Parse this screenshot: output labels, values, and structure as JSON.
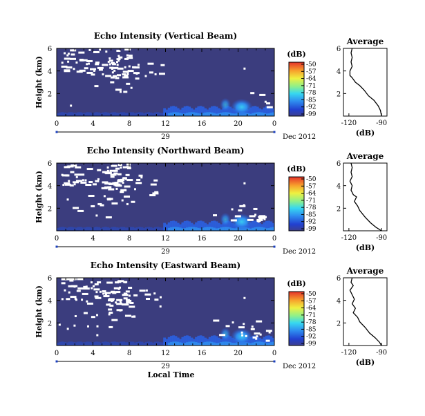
{
  "chart_data": [
    {
      "type": "heatmap",
      "title": "Echo Intensity (Vertical Beam)",
      "xlabel": "",
      "ylabel": "Height (km)",
      "xticks": [
        "0",
        "4",
        "8",
        "12",
        "16",
        "20",
        "0"
      ],
      "xlim": [
        0,
        24
      ],
      "yticks": [
        "2",
        "4",
        "6"
      ],
      "ylim": [
        0,
        6
      ],
      "day_label": "29",
      "date_label": "Dec 2012",
      "colorbar": {
        "title": "(dB)",
        "ticks": [
          "-50",
          "-57",
          "-64",
          "-71",
          "-78",
          "-85",
          "-92",
          "-99"
        ],
        "range": [
          -99,
          -50
        ]
      },
      "profile": {
        "title": "Average",
        "xlabel": "(dB)",
        "xticks": [
          "-120",
          "-90"
        ],
        "xlim": [
          -125,
          -85
        ],
        "yticks": [
          "2",
          "4",
          "6"
        ],
        "ylim": [
          0,
          6
        ],
        "points": [
          [
            -117,
            6.0
          ],
          [
            -118,
            5.6
          ],
          [
            -117,
            5.2
          ],
          [
            -118,
            4.8
          ],
          [
            -117,
            4.4
          ],
          [
            -119,
            4.0
          ],
          [
            -119,
            3.6
          ],
          [
            -117,
            3.4
          ],
          [
            -114,
            3.0
          ],
          [
            -110,
            2.7
          ],
          [
            -106,
            2.3
          ],
          [
            -102,
            1.8
          ],
          [
            -97,
            1.4
          ],
          [
            -93,
            0.9
          ],
          [
            -91,
            0.5
          ],
          [
            -90,
            0.0
          ]
        ]
      }
    },
    {
      "type": "heatmap",
      "title": "Echo Intensity (Northward Beam)",
      "xlabel": "",
      "ylabel": "Height (km)",
      "xticks": [
        "0",
        "4",
        "8",
        "12",
        "16",
        "20",
        "0"
      ],
      "xlim": [
        0,
        24
      ],
      "yticks": [
        "2",
        "4",
        "6"
      ],
      "ylim": [
        0,
        6
      ],
      "day_label": "29",
      "date_label": "Dec 2012",
      "colorbar": {
        "title": "(dB)",
        "ticks": [
          "-50",
          "-57",
          "-64",
          "-71",
          "-78",
          "-85",
          "-92",
          "-99"
        ],
        "range": [
          -99,
          -50
        ]
      },
      "profile": {
        "title": "Average",
        "xlabel": "(dB)",
        "xticks": [
          "-120",
          "-90"
        ],
        "xlim": [
          -125,
          -85
        ],
        "yticks": [
          "2",
          "4",
          "6"
        ],
        "ylim": [
          0,
          6
        ],
        "points": [
          [
            -118,
            6.0
          ],
          [
            -117,
            5.6
          ],
          [
            -118,
            5.2
          ],
          [
            -117,
            4.8
          ],
          [
            -119,
            4.4
          ],
          [
            -117,
            4.0
          ],
          [
            -118,
            3.6
          ],
          [
            -116,
            3.2
          ],
          [
            -113,
            3.0
          ],
          [
            -115,
            2.6
          ],
          [
            -112,
            2.2
          ],
          [
            -110,
            1.8
          ],
          [
            -105,
            1.2
          ],
          [
            -100,
            0.7
          ],
          [
            -95,
            0.3
          ],
          [
            -90,
            0.0
          ]
        ]
      }
    },
    {
      "type": "heatmap",
      "title": "Echo Intensity (Eastward Beam)",
      "xlabel": "Local Time",
      "ylabel": "Height (km)",
      "xticks": [
        "0",
        "4",
        "8",
        "12",
        "16",
        "20",
        "0"
      ],
      "xlim": [
        0,
        24
      ],
      "yticks": [
        "2",
        "4",
        "6"
      ],
      "ylim": [
        0,
        6
      ],
      "day_label": "29",
      "date_label": "Dec 2012",
      "colorbar": {
        "title": "(dB)",
        "ticks": [
          "-50",
          "-57",
          "-64",
          "-71",
          "-78",
          "-85",
          "-92",
          "-99"
        ],
        "range": [
          -99,
          -50
        ]
      },
      "profile": {
        "title": "Average",
        "xlabel": "(dB)",
        "xticks": [
          "-120",
          "-90"
        ],
        "xlim": [
          -125,
          -85
        ],
        "yticks": [
          "2",
          "4",
          "6"
        ],
        "ylim": [
          0,
          6
        ],
        "points": [
          [
            -117,
            6.0
          ],
          [
            -118,
            5.6
          ],
          [
            -116,
            5.3
          ],
          [
            -119,
            4.9
          ],
          [
            -117,
            4.5
          ],
          [
            -115,
            4.1
          ],
          [
            -117,
            3.7
          ],
          [
            -114,
            3.3
          ],
          [
            -116,
            2.9
          ],
          [
            -112,
            2.5
          ],
          [
            -110,
            2.1
          ],
          [
            -105,
            1.6
          ],
          [
            -101,
            1.1
          ],
          [
            -96,
            0.7
          ],
          [
            -92,
            0.3
          ],
          [
            -90,
            0.0
          ]
        ]
      }
    }
  ]
}
